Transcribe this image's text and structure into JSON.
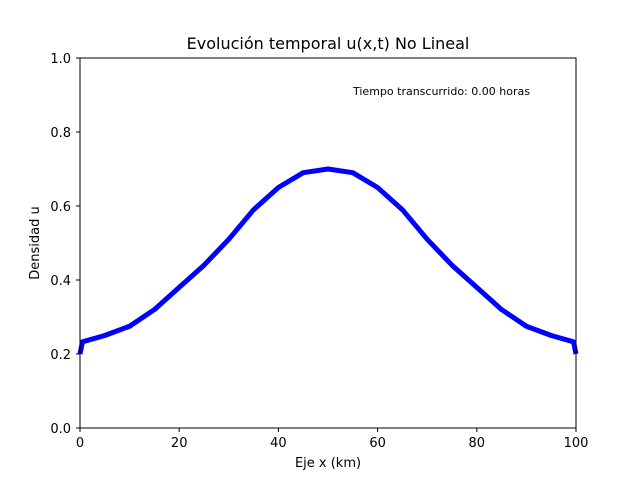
{
  "chart_data": {
    "type": "line",
    "title": "Evolución temporal u(x,t) No Lineal",
    "xlabel": "Eje x (km)",
    "ylabel": "Densidad u",
    "xlim": [
      0,
      100
    ],
    "ylim": [
      0,
      1.0
    ],
    "xticks": [
      "0",
      "20",
      "40",
      "60",
      "80",
      "100"
    ],
    "yticks": [
      "0.0",
      "0.2",
      "0.4",
      "0.6",
      "0.8",
      "1.0"
    ],
    "grid": false,
    "annotation": "Tiempo transcurrido: 0.00 horas",
    "series": [
      {
        "color": "#0000ff",
        "x": [
          0,
          0.5,
          5,
          10,
          15,
          20,
          25,
          30,
          35,
          40,
          45,
          50,
          55,
          60,
          65,
          70,
          75,
          80,
          85,
          90,
          95,
          99.5,
          100
        ],
        "y": [
          0.2,
          0.233,
          0.25,
          0.275,
          0.32,
          0.38,
          0.44,
          0.51,
          0.59,
          0.65,
          0.69,
          0.7,
          0.69,
          0.65,
          0.59,
          0.51,
          0.44,
          0.38,
          0.32,
          0.275,
          0.25,
          0.233,
          0.2
        ]
      }
    ]
  }
}
